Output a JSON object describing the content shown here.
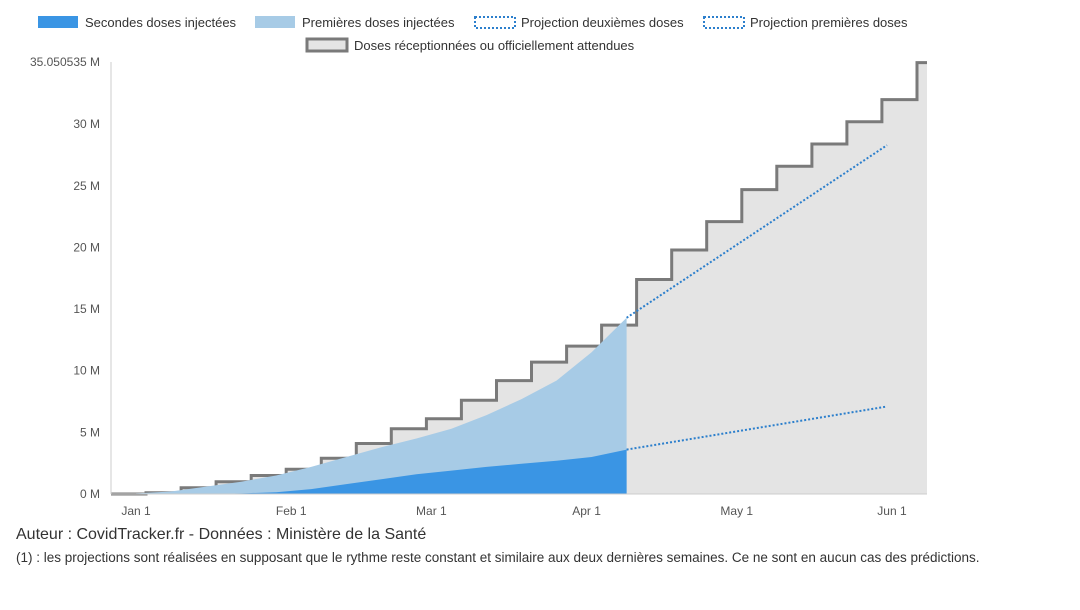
{
  "colors": {
    "second": "#3a95e4",
    "first": "#a7cbe6",
    "projection": "#2c7fcc",
    "received_fill": "#e4e4e4",
    "received_stroke": "#7a7a7a"
  },
  "footer": {
    "author": "Auteur : CovidTracker.fr - Données : Ministère de la Santé",
    "note": "(1) : les projections sont réalisées en supposant que le rythme reste constant et similaire aux deux dernières semaines. Ce ne sont en aucun cas des prédictions."
  },
  "chart_data": {
    "type": "area",
    "legend": [
      {
        "name": "Secondes doses injectées",
        "style": "solid",
        "color": "#3a95e4"
      },
      {
        "name": "Premières doses injectées",
        "style": "solid",
        "color": "#a7cbe6"
      },
      {
        "name": "Projection deuxièmes doses",
        "style": "dotted",
        "color": "#2c7fcc"
      },
      {
        "name": "Projection premières doses",
        "style": "dotted",
        "color": "#2c7fcc"
      },
      {
        "name": "Doses réceptionnées ou officiellement attendues",
        "style": "step",
        "color": "#7a7a7a"
      }
    ],
    "legend_position": "top",
    "y_unit": "M",
    "y_range": [
      0,
      35.050535
    ],
    "y_ticks": [
      {
        "value": 0,
        "label": "0 M"
      },
      {
        "value": 5,
        "label": "5 M"
      },
      {
        "value": 10,
        "label": "10 M"
      },
      {
        "value": 15,
        "label": "15 M"
      },
      {
        "value": 20,
        "label": "20 M"
      },
      {
        "value": 25,
        "label": "25 M"
      },
      {
        "value": 30,
        "label": "30 M"
      },
      {
        "value": 35.050535,
        "label": "35.050535 M"
      }
    ],
    "x_range": [
      "2020-12-27",
      "2021-06-08"
    ],
    "x_ticks": [
      {
        "date": "2021-01-01",
        "label": "Jan 1"
      },
      {
        "date": "2021-02-01",
        "label": "Feb 1"
      },
      {
        "date": "2021-03-01",
        "label": "Mar 1"
      },
      {
        "date": "2021-04-01",
        "label": "Apr 1"
      },
      {
        "date": "2021-05-01",
        "label": "May 1"
      },
      {
        "date": "2021-06-01",
        "label": "Jun 1"
      }
    ],
    "grid": false,
    "series": [
      {
        "name": "Doses réceptionnées ou officiellement attendues",
        "type": "step",
        "x": [
          "2020-12-27",
          "2021-01-03",
          "2021-01-10",
          "2021-01-17",
          "2021-01-24",
          "2021-01-31",
          "2021-02-07",
          "2021-02-14",
          "2021-02-21",
          "2021-02-28",
          "2021-03-07",
          "2021-03-14",
          "2021-03-21",
          "2021-03-28",
          "2021-04-04",
          "2021-04-11",
          "2021-04-18",
          "2021-04-25",
          "2021-05-02",
          "2021-05-09",
          "2021-05-16",
          "2021-05-23",
          "2021-05-30",
          "2021-06-06"
        ],
        "y": [
          0,
          0.1,
          0.5,
          1.0,
          1.5,
          2.0,
          2.9,
          4.1,
          5.3,
          6.1,
          7.6,
          9.2,
          10.7,
          12.0,
          13.7,
          17.4,
          19.8,
          22.1,
          24.7,
          26.6,
          28.4,
          30.2,
          32.0,
          35.0
        ]
      },
      {
        "name": "Premières doses injectées",
        "type": "area",
        "x": [
          "2021-01-01",
          "2021-01-08",
          "2021-01-15",
          "2021-01-22",
          "2021-01-29",
          "2021-02-05",
          "2021-02-12",
          "2021-02-19",
          "2021-02-26",
          "2021-03-05",
          "2021-03-12",
          "2021-03-19",
          "2021-03-26",
          "2021-04-02",
          "2021-04-09"
        ],
        "y": [
          0.05,
          0.2,
          0.6,
          1.0,
          1.5,
          2.2,
          3.0,
          3.8,
          4.5,
          5.3,
          6.4,
          7.7,
          9.2,
          11.5,
          14.3
        ]
      },
      {
        "name": "Secondes doses injectées",
        "type": "area",
        "x": [
          "2021-01-01",
          "2021-01-15",
          "2021-01-22",
          "2021-01-29",
          "2021-02-05",
          "2021-02-12",
          "2021-02-19",
          "2021-02-26",
          "2021-03-05",
          "2021-03-12",
          "2021-03-19",
          "2021-03-26",
          "2021-04-02",
          "2021-04-09"
        ],
        "y": [
          0,
          0,
          0.05,
          0.15,
          0.4,
          0.8,
          1.2,
          1.6,
          1.9,
          2.2,
          2.45,
          2.7,
          3.0,
          3.6
        ]
      },
      {
        "name": "Projection premières doses",
        "type": "dotted",
        "x": [
          "2021-04-09",
          "2021-05-31"
        ],
        "y": [
          14.3,
          28.3
        ]
      },
      {
        "name": "Projection deuxièmes doses",
        "type": "dotted",
        "x": [
          "2021-04-09",
          "2021-05-31"
        ],
        "y": [
          3.6,
          7.1
        ]
      }
    ]
  }
}
